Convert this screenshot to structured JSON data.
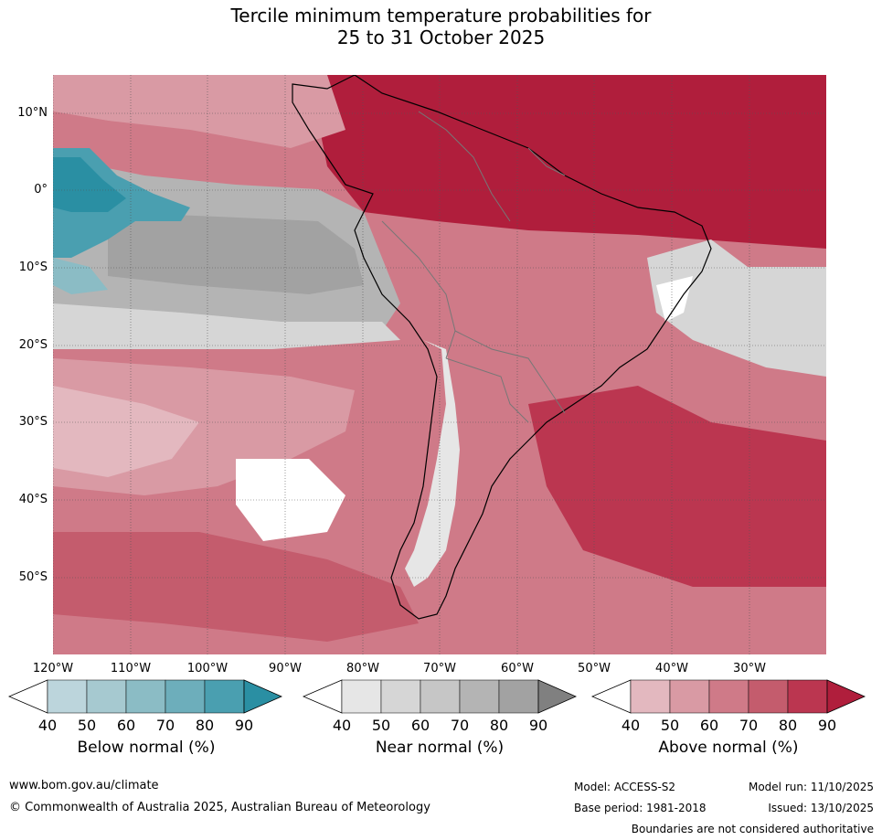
{
  "title": {
    "line1": "Tercile minimum temperature probabilities for",
    "line2": "25 to 31 October 2025"
  },
  "map": {
    "latitude_labels": [
      "10°N",
      "0°",
      "10°S",
      "20°S",
      "30°S",
      "40°S",
      "50°S"
    ],
    "longitude_labels": [
      "120°W",
      "110°W",
      "100°W",
      "90°W",
      "80°W",
      "70°W",
      "60°W",
      "50°W",
      "40°W",
      "30°W"
    ]
  },
  "legends": [
    {
      "label": "Below normal (%)",
      "ticks": [
        "40",
        "50",
        "60",
        "70",
        "80",
        "90"
      ],
      "colors": [
        "#ffffff",
        "#bcd5dc",
        "#a6c9d0",
        "#8bbcc5",
        "#6daebb",
        "#4a9fb0",
        "#2a8fa3"
      ]
    },
    {
      "label": "Near normal (%)",
      "ticks": [
        "40",
        "50",
        "60",
        "70",
        "80",
        "90"
      ],
      "colors": [
        "#ffffff",
        "#e6e6e6",
        "#d6d6d6",
        "#c6c6c6",
        "#b4b4b4",
        "#a2a2a2",
        "#808080"
      ]
    },
    {
      "label": "Above normal (%)",
      "ticks": [
        "40",
        "50",
        "60",
        "70",
        "80",
        "90"
      ],
      "colors": [
        "#ffffff",
        "#e3b8bf",
        "#d99aa4",
        "#cf7a88",
        "#c45c6d",
        "#bb3650",
        "#b01e3c"
      ]
    }
  ],
  "footer": {
    "website": "www.bom.gov.au/climate",
    "copyright": "© Commonwealth of Australia 2025, Australian Bureau of Meteorology",
    "model": "Model: ACCESS-S2",
    "model_run": "Model run: 11/10/2025",
    "base_period": "Base period: 1981-2018",
    "issued": "Issued: 13/10/2025",
    "disclaimer": "Boundaries are not considered authoritative"
  }
}
